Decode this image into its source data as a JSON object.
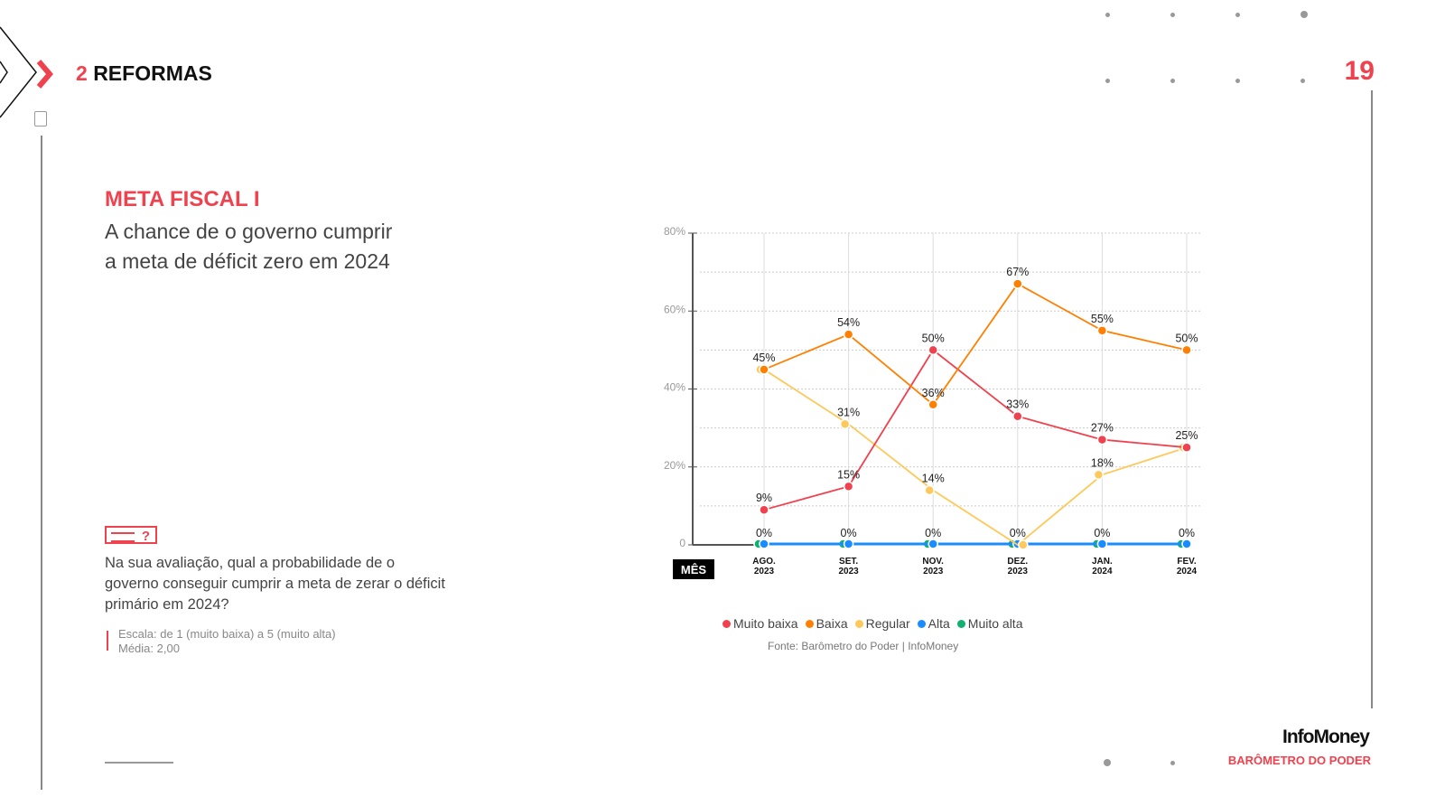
{
  "header": {
    "section_number": "2",
    "section_title": "REFORMAS",
    "page_number": "19"
  },
  "content": {
    "title": "META FISCAL I",
    "subtitle": "A chance de o governo cumprir a meta de déficit zero em 2024",
    "question_icon": "?",
    "question": "Na sua avaliação, qual a probabilidade de o governo conseguir cumprir a meta de zerar o déficit primário em 2024?",
    "scale": "Escala: de 1 (muito baixa) a 5 (muito alta)",
    "mean": "Média: 2,00"
  },
  "footer": {
    "logo": "InfoMoney",
    "brand": "BARÔMETRO DO PODER"
  },
  "chart_data": {
    "type": "line",
    "xlabel": "MÊS",
    "categories": [
      [
        "AGO.",
        "2023"
      ],
      [
        "SET.",
        "2023"
      ],
      [
        "NOV.",
        "2023"
      ],
      [
        "DEZ.",
        "2023"
      ],
      [
        "JAN.",
        "2024"
      ],
      [
        "FEV.",
        "2024"
      ]
    ],
    "yticks": [
      "0",
      "20%",
      "40%",
      "60%",
      "80%"
    ],
    "ylim": [
      0,
      80
    ],
    "grid": true,
    "series": [
      {
        "name": "Muito baixa",
        "color": "#f0424e",
        "values": [
          9,
          15,
          50,
          33,
          27,
          25
        ]
      },
      {
        "name": "Baixa",
        "color": "#ff8000",
        "values": [
          45,
          54,
          36,
          67,
          55,
          50
        ]
      },
      {
        "name": "Regular",
        "color": "#ffc85a",
        "values": [
          45,
          31,
          14,
          0,
          18,
          25
        ]
      },
      {
        "name": "Alta",
        "color": "#1a8cff",
        "values": [
          0,
          0,
          0,
          0,
          0,
          0
        ]
      },
      {
        "name": "Muito alta",
        "color": "#10b070",
        "values": [
          0,
          0,
          0,
          0,
          0,
          0
        ]
      }
    ],
    "labels": [
      [
        "9%",
        "15%",
        "50%",
        "33%",
        "27%",
        "25%"
      ],
      [
        "45%",
        "54%",
        "36%",
        "67%",
        "55%",
        "50%"
      ],
      [
        "",
        "31%",
        "14%",
        "",
        "18%",
        ""
      ],
      [
        "0%",
        "0%",
        "0%",
        "0%",
        "0%",
        "0%"
      ]
    ],
    "legend_position": "bottom",
    "source": "Fonte: Barômetro do Poder | InfoMoney"
  }
}
